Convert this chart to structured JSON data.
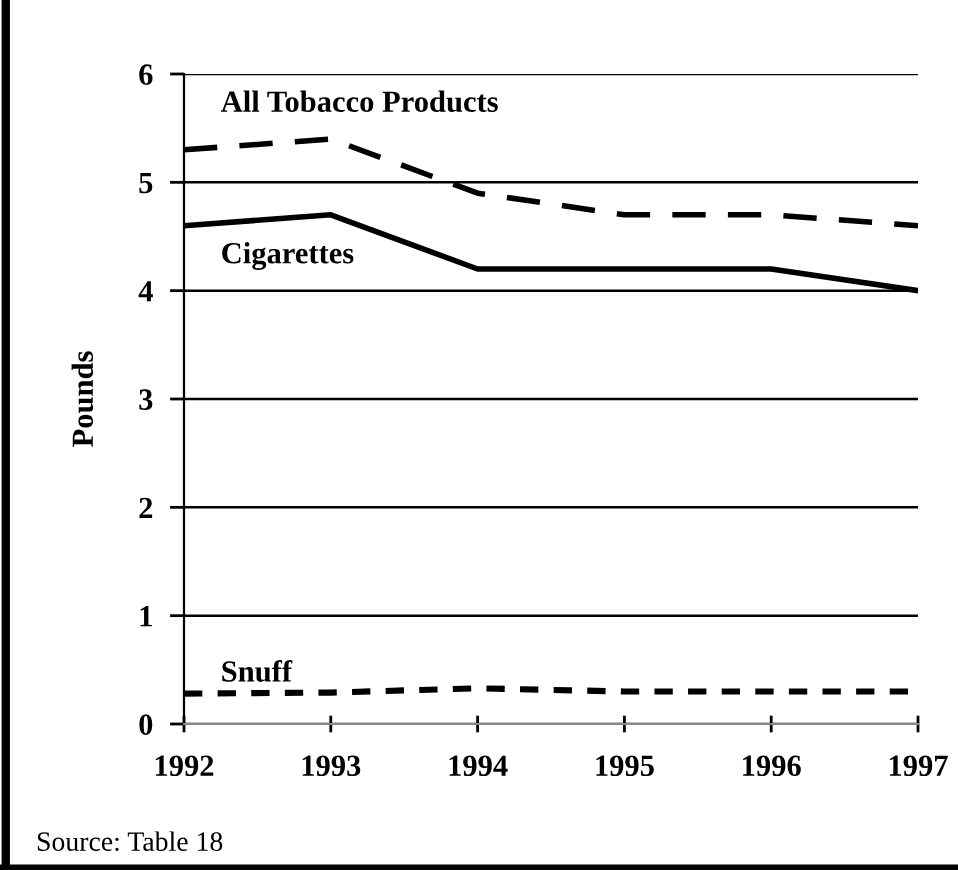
{
  "chart_data": {
    "type": "line",
    "ylabel": "Pounds",
    "x": [
      1992,
      1993,
      1994,
      1995,
      1996,
      1997
    ],
    "series": [
      {
        "name": "All Tobacco Products",
        "color": "#000000",
        "line_style": "dashed",
        "values": [
          5.3,
          5.4,
          4.9,
          4.7,
          4.7,
          4.6
        ]
      },
      {
        "name": "Cigarettes",
        "color": "#000000",
        "line_style": "solid",
        "values": [
          4.6,
          4.7,
          4.2,
          4.2,
          4.2,
          4.0
        ]
      },
      {
        "name": "Snuff",
        "color": "#000000",
        "line_style": "dotted",
        "values": [
          0.28,
          0.29,
          0.33,
          0.3,
          0.3,
          0.3
        ]
      }
    ],
    "xlim": [
      1992,
      1997
    ],
    "xticks": [
      1992,
      1993,
      1994,
      1995,
      1996,
      1997
    ],
    "ylim": [
      0,
      6
    ],
    "yticks": [
      0,
      1,
      2,
      3,
      4,
      5,
      6
    ],
    "grid": "y",
    "marker": "none",
    "annotations": [
      "Source: Table 18"
    ]
  }
}
